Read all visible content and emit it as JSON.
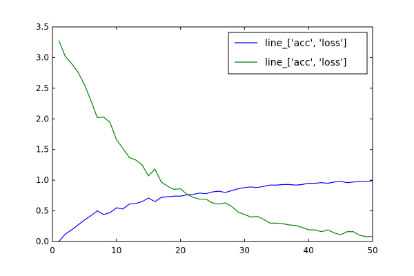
{
  "chart_data": {
    "type": "line",
    "title": "",
    "xlabel": "",
    "ylabel": "",
    "xlim": [
      0,
      50
    ],
    "ylim": [
      0.0,
      3.5
    ],
    "xticks": [
      "0",
      "10",
      "20",
      "30",
      "40",
      "50"
    ],
    "yticks": [
      "0.0",
      "0.5",
      "1.0",
      "1.5",
      "2.0",
      "2.5",
      "3.0",
      "3.5"
    ],
    "grid": false,
    "legend_position": "top-right",
    "x": [
      1,
      2,
      3,
      4,
      5,
      6,
      7,
      8,
      9,
      10,
      11,
      12,
      13,
      14,
      15,
      16,
      17,
      18,
      19,
      20,
      21,
      22,
      23,
      24,
      25,
      26,
      27,
      28,
      29,
      30,
      31,
      32,
      33,
      34,
      35,
      36,
      37,
      38,
      39,
      40,
      41,
      42,
      43,
      44,
      45,
      46,
      47,
      48,
      49,
      50
    ],
    "series": [
      {
        "name": "line_['acc', 'loss']",
        "color": "#0000ff",
        "values": [
          0.0,
          0.12,
          0.19,
          0.27,
          0.35,
          0.42,
          0.5,
          0.44,
          0.47,
          0.55,
          0.53,
          0.61,
          0.62,
          0.65,
          0.71,
          0.65,
          0.72,
          0.73,
          0.74,
          0.74,
          0.76,
          0.77,
          0.79,
          0.78,
          0.81,
          0.82,
          0.8,
          0.83,
          0.86,
          0.88,
          0.89,
          0.88,
          0.9,
          0.92,
          0.92,
          0.93,
          0.93,
          0.92,
          0.93,
          0.95,
          0.95,
          0.96,
          0.95,
          0.97,
          0.98,
          0.96,
          0.97,
          0.98,
          0.98,
          0.99
        ]
      },
      {
        "name": "line_['acc', 'loss']",
        "color": "#008000",
        "values": [
          3.28,
          3.02,
          2.9,
          2.76,
          2.56,
          2.3,
          2.02,
          2.03,
          1.94,
          1.66,
          1.52,
          1.37,
          1.33,
          1.25,
          1.07,
          1.18,
          0.97,
          0.9,
          0.85,
          0.86,
          0.77,
          0.72,
          0.69,
          0.69,
          0.63,
          0.61,
          0.63,
          0.57,
          0.48,
          0.44,
          0.4,
          0.41,
          0.36,
          0.3,
          0.3,
          0.29,
          0.27,
          0.26,
          0.23,
          0.19,
          0.19,
          0.16,
          0.19,
          0.14,
          0.11,
          0.16,
          0.16,
          0.1,
          0.08,
          0.08
        ]
      }
    ]
  }
}
